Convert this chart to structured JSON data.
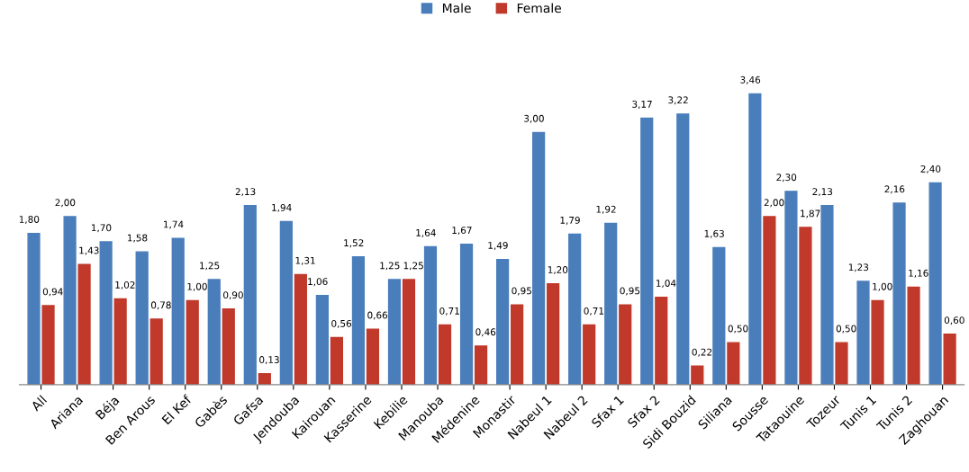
{
  "chart_data": {
    "type": "bar",
    "categories": [
      "All",
      "Ariana",
      "Béja",
      "Ben Arous",
      "El Kef",
      "Gabès",
      "Gafsa",
      "Jendouba",
      "Kairouan",
      "Kasserine",
      "Kebilie",
      "Manouba",
      "Médenine",
      "Monastir",
      "Nabeul 1",
      "Nabeul 2",
      "Sfax 1",
      "Sfax 2",
      "Sidi Bouzid",
      "Siliana",
      "Sousse",
      "Tataouine",
      "Tozeur",
      "Tunis 1",
      "Tunis 2",
      "Zaghouan"
    ],
    "series": [
      {
        "name": "Male",
        "color": "#4a7ebb",
        "values": [
          1.8,
          2.0,
          1.7,
          1.58,
          1.74,
          1.25,
          2.13,
          1.94,
          1.06,
          1.52,
          1.25,
          1.64,
          1.67,
          1.49,
          3.0,
          1.79,
          1.92,
          3.17,
          3.22,
          1.63,
          3.46,
          2.3,
          2.13,
          1.23,
          2.16,
          2.4
        ],
        "value_labels": [
          "1,80",
          "2,00",
          "1,70",
          "1,58",
          "1,74",
          "1,25",
          "2,13",
          "1,94",
          "1,06",
          "1,52",
          "1,25",
          "1,64",
          "1,67",
          "1,49",
          "3,00",
          "1,79",
          "1,92",
          "3,17",
          "3,22",
          "1,63",
          "3,46",
          "2,30",
          "2,13",
          "1,23",
          "2,16",
          "2,40"
        ]
      },
      {
        "name": "Female",
        "color": "#c0392b",
        "values": [
          0.94,
          1.43,
          1.02,
          0.78,
          1.0,
          0.9,
          0.13,
          1.31,
          0.56,
          0.66,
          1.25,
          0.71,
          0.46,
          0.95,
          1.2,
          0.71,
          0.95,
          1.04,
          0.22,
          0.5,
          2.0,
          1.87,
          0.5,
          1.0,
          1.16,
          0.6
        ],
        "value_labels": [
          "0,94",
          "1,43",
          "1,02",
          "0,78",
          "1,00",
          "0,90",
          "0,13",
          "1,31",
          "0,56",
          "0,66",
          "1,25",
          "0,71",
          "0,46",
          "0,95",
          "1,20",
          "0,71",
          "0,95",
          "1,04",
          "0,22",
          "0,50",
          "2,00",
          "1,87",
          "0,50",
          "1,00",
          "1,16",
          "0,60"
        ]
      }
    ],
    "legend": "top"
  }
}
